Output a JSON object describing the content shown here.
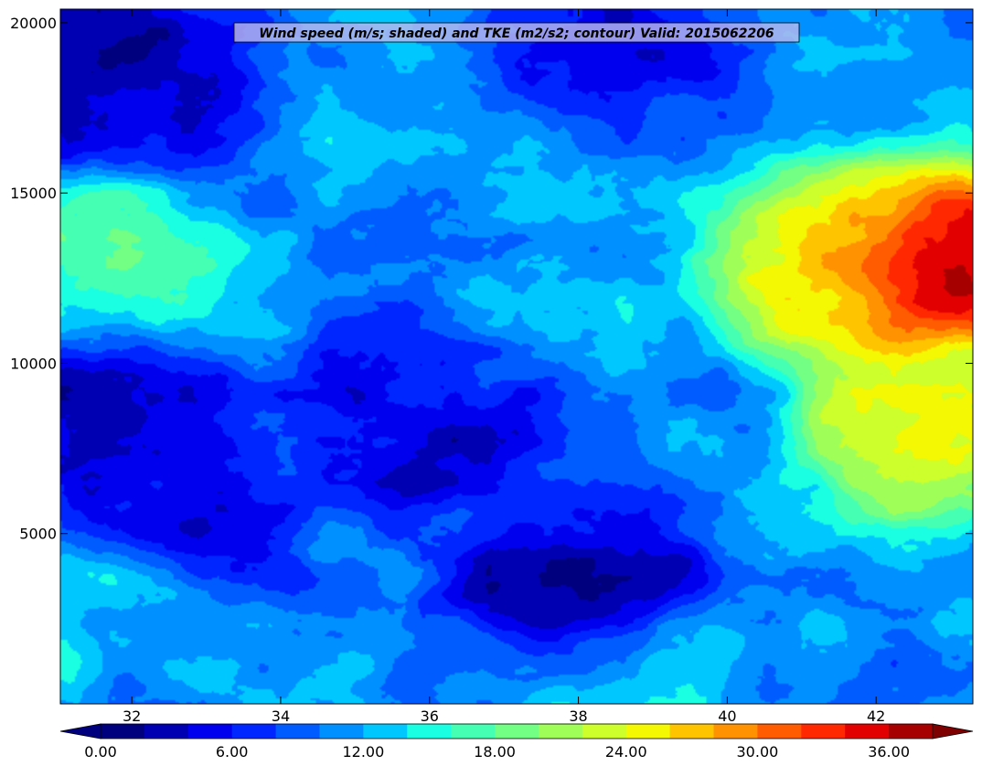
{
  "chart_data": {
    "type": "heatmap",
    "subtype": "filled-contour",
    "title": "Wind speed (m/s; shaded) and TKE (m2/s2; contour) Valid: 2015062206",
    "x_ticks": [
      "32",
      "34",
      "36",
      "38",
      "40",
      "42"
    ],
    "x_tick_values": [
      32,
      34,
      36,
      38,
      40,
      42
    ],
    "y_ticks": [
      "5000",
      "10000",
      "15000",
      "20000"
    ],
    "y_tick_values": [
      5000,
      10000,
      15000,
      20000
    ],
    "xlim": [
      31.04,
      43.3
    ],
    "ylim": [
      0,
      20400
    ],
    "colorbar": {
      "levels_start": 0,
      "levels_step": 2,
      "levels_count": 21,
      "tick_labels": [
        "0.00",
        "6.00",
        "12.00",
        "18.00",
        "24.00",
        "30.00",
        "36.00"
      ],
      "tick_values": [
        0,
        6,
        12,
        18,
        24,
        30,
        36
      ],
      "extend": "both",
      "colors": [
        "#00007f",
        "#0000b2",
        "#0000ee",
        "#0026ff",
        "#005cff",
        "#0090ff",
        "#00c8ff",
        "#1affe1",
        "#45ffb2",
        "#72ff84",
        "#9fff58",
        "#ccff2b",
        "#f4f802",
        "#ffc400",
        "#ff9200",
        "#ff5b00",
        "#ff2800",
        "#e30000",
        "#a60000"
      ],
      "under_color": "#00007f",
      "over_color": "#7f0000"
    },
    "field_features": [
      {
        "feature": "jet maximum",
        "x": 42.9,
        "y": 12800,
        "value": 37
      },
      {
        "feature": "upper jet core",
        "x": 41.5,
        "y": 13000,
        "value": 27
      },
      {
        "feature": "mid-level speed band",
        "x": 42.8,
        "y": 8000,
        "value": 26
      },
      {
        "feature": "west-side maximum",
        "x": 31.5,
        "y": 12500,
        "value": 17
      },
      {
        "feature": "low-level band",
        "x": 38.5,
        "y": 1000,
        "value": 14
      },
      {
        "feature": "west low-level band",
        "x": 31.3,
        "y": 2700,
        "value": 13
      },
      {
        "feature": "upper minimum",
        "x": 32.0,
        "y": 18500,
        "value": 3
      },
      {
        "feature": "upper minimum east",
        "x": 38.5,
        "y": 19500,
        "value": 5
      },
      {
        "feature": "mid minimum",
        "x": 32.6,
        "y": 6000,
        "value": 3
      },
      {
        "feature": "low minimum",
        "x": 38.0,
        "y": 3300,
        "value": 2
      },
      {
        "feature": "mid minimum central",
        "x": 35.6,
        "y": 8300,
        "value": 4
      },
      {
        "feature": "west mid minimum",
        "x": 31.6,
        "y": 9200,
        "value": 4
      }
    ]
  }
}
